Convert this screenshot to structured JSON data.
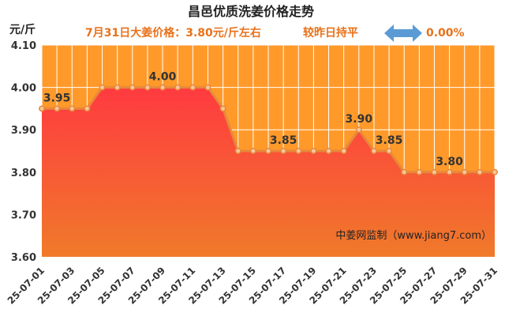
{
  "chart_data": {
    "type": "area",
    "title": "昌邑优质洗姜价格走势",
    "subtitle_price": "7月31日大姜价格：3.80元/斤左右",
    "subtitle_compare": "较昨日持平",
    "subtitle_change": "0.00%",
    "ylabel": "元/斤",
    "ylim": [
      3.6,
      4.1
    ],
    "yticks": [
      "3.60",
      "3.70",
      "3.80",
      "3.90",
      "4.00",
      "4.10"
    ],
    "grid": true,
    "x": [
      "25-07-01",
      "25-07-02",
      "25-07-03",
      "25-07-04",
      "25-07-05",
      "25-07-06",
      "25-07-07",
      "25-07-08",
      "25-07-09",
      "25-07-10",
      "25-07-11",
      "25-07-12",
      "25-07-13",
      "25-07-14",
      "25-07-15",
      "25-07-16",
      "25-07-17",
      "25-07-18",
      "25-07-19",
      "25-07-20",
      "25-07-21",
      "25-07-22",
      "25-07-23",
      "25-07-24",
      "25-07-25",
      "25-07-26",
      "25-07-27",
      "25-07-28",
      "25-07-29",
      "25-07-30",
      "25-07-31"
    ],
    "xtick_labels": [
      "25-07-01",
      "25-07-03",
      "25-07-05",
      "25-07-07",
      "25-07-09",
      "25-07-11",
      "25-07-13",
      "25-07-15",
      "25-07-17",
      "25-07-19",
      "25-07-21",
      "25-07-23",
      "25-07-25",
      "25-07-27",
      "25-07-29",
      "25-07-31"
    ],
    "values": [
      3.95,
      3.95,
      3.95,
      3.95,
      4.0,
      4.0,
      4.0,
      4.0,
      4.0,
      4.0,
      4.0,
      4.0,
      3.95,
      3.85,
      3.85,
      3.85,
      3.85,
      3.85,
      3.85,
      3.85,
      3.85,
      3.9,
      3.85,
      3.85,
      3.8,
      3.8,
      3.8,
      3.8,
      3.8,
      3.8,
      3.8
    ],
    "data_labels": [
      {
        "x": "25-07-02",
        "text": "3.95"
      },
      {
        "x": "25-07-09",
        "text": "4.00"
      },
      {
        "x": "25-07-17",
        "text": "3.85"
      },
      {
        "x": "25-07-22",
        "text": "3.90"
      },
      {
        "x": "25-07-24",
        "text": "3.85"
      },
      {
        "x": "25-07-28",
        "text": "3.80"
      }
    ],
    "credit": "中姜网监制（www.jiang7.com）",
    "colors": {
      "line": "#e8883a",
      "marker_fill": "#f6c79a",
      "fill_top": "#ff3a40",
      "fill_bottom": "#f07a2a",
      "plot_bg": "#ff9a2a",
      "arrow": "#5b9bd5",
      "subtitle": "#e8711a"
    }
  }
}
